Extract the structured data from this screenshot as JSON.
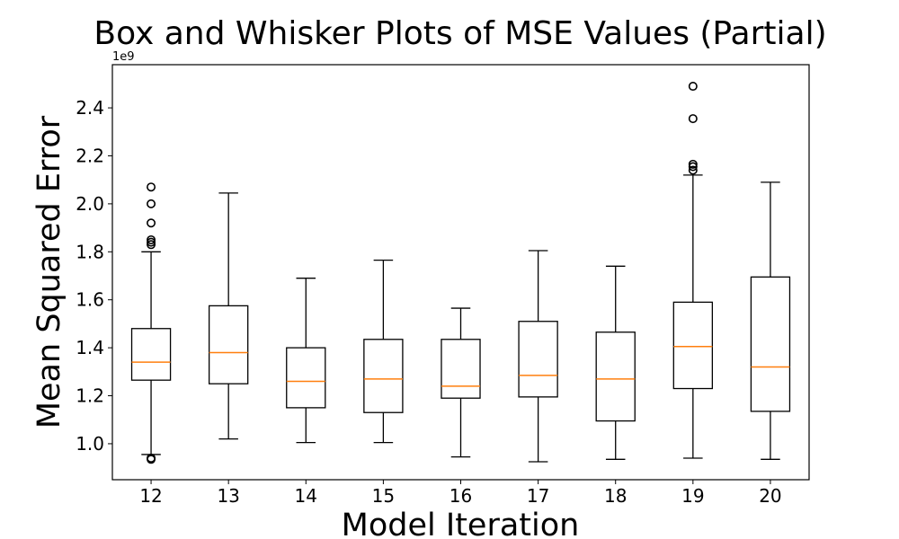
{
  "chart_data": {
    "type": "box",
    "title": "Box and Whisker Plots of MSE Values (Partial)",
    "xlabel": "Model Iteration",
    "ylabel": "Mean Squared Error",
    "y_offset_label": "1e9",
    "ylim": [
      0.85,
      2.58
    ],
    "yticks": [
      1.0,
      1.2,
      1.4,
      1.6,
      1.8,
      2.0,
      2.2,
      2.4
    ],
    "ytick_labels": [
      "1.0",
      "1.2",
      "1.4",
      "1.6",
      "1.8",
      "2.0",
      "2.2",
      "2.4"
    ],
    "grid": false,
    "colors": {
      "box": "#000000",
      "median": "#ff7f0e",
      "outlier": "#000000"
    },
    "categories": [
      "12",
      "13",
      "14",
      "15",
      "16",
      "17",
      "18",
      "19",
      "20"
    ],
    "boxes": [
      {
        "label": "12",
        "whisker_low": 0.955,
        "q1": 1.265,
        "median": 1.34,
        "q3": 1.48,
        "whisker_high": 1.8,
        "outliers": [
          0.935,
          0.94,
          1.83,
          1.84,
          1.85,
          1.92,
          2.0,
          2.07
        ]
      },
      {
        "label": "13",
        "whisker_low": 1.02,
        "q1": 1.25,
        "median": 1.38,
        "q3": 1.575,
        "whisker_high": 2.045,
        "outliers": []
      },
      {
        "label": "14",
        "whisker_low": 1.005,
        "q1": 1.15,
        "median": 1.26,
        "q3": 1.4,
        "whisker_high": 1.69,
        "outliers": []
      },
      {
        "label": "15",
        "whisker_low": 1.005,
        "q1": 1.13,
        "median": 1.27,
        "q3": 1.435,
        "whisker_high": 1.765,
        "outliers": []
      },
      {
        "label": "16",
        "whisker_low": 0.945,
        "q1": 1.19,
        "median": 1.24,
        "q3": 1.435,
        "whisker_high": 1.565,
        "outliers": []
      },
      {
        "label": "17",
        "whisker_low": 0.925,
        "q1": 1.195,
        "median": 1.285,
        "q3": 1.51,
        "whisker_high": 1.805,
        "outliers": []
      },
      {
        "label": "18",
        "whisker_low": 0.935,
        "q1": 1.095,
        "median": 1.27,
        "q3": 1.465,
        "whisker_high": 1.74,
        "outliers": []
      },
      {
        "label": "19",
        "whisker_low": 0.94,
        "q1": 1.23,
        "median": 1.405,
        "q3": 1.59,
        "whisker_high": 2.12,
        "outliers": [
          2.14,
          2.155,
          2.165,
          2.355,
          2.49
        ]
      },
      {
        "label": "20",
        "whisker_low": 0.935,
        "q1": 1.135,
        "median": 1.32,
        "q3": 1.695,
        "whisker_high": 2.09,
        "outliers": []
      }
    ]
  }
}
